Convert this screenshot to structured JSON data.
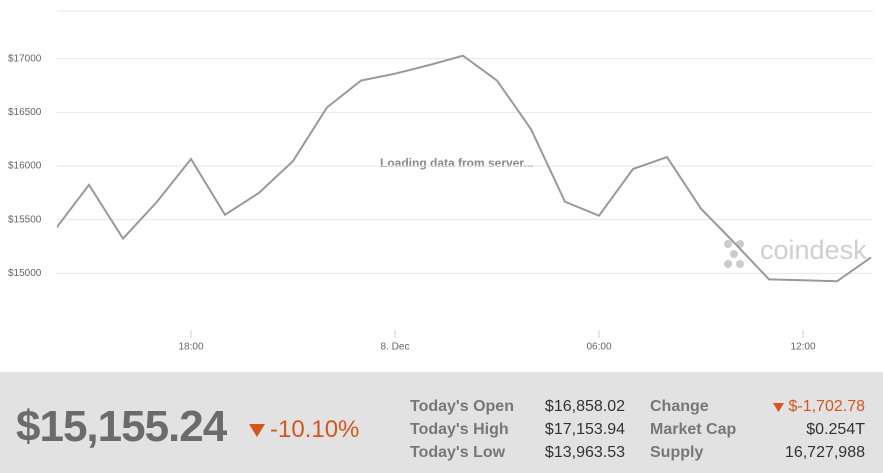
{
  "chart_data": {
    "type": "line",
    "categories": [
      null,
      null,
      null,
      null,
      "18:00",
      null,
      null,
      null,
      null,
      null,
      "8. Dec",
      null,
      null,
      null,
      null,
      null,
      "06:00",
      null,
      null,
      null,
      null,
      null,
      "12:00",
      null,
      null
    ],
    "series": [
      {
        "color": "#999999",
        "values": [
          15407,
          15824,
          15324,
          15667,
          16065,
          15546,
          15750,
          16046,
          16546,
          16796,
          16860,
          16940,
          17028,
          16796,
          16343,
          15667,
          15537,
          15972,
          16083,
          15602,
          15278,
          14944,
          14935,
          14926,
          15148
        ]
      }
    ],
    "ylim": [
      14500,
      17500
    ],
    "yticks": [
      {
        "value": 15000,
        "label": "$15000"
      },
      {
        "value": 15500,
        "label": "$15500"
      },
      {
        "value": 16000,
        "label": "$16000"
      },
      {
        "value": 16500,
        "label": "$16500"
      },
      {
        "value": 17000,
        "label": "$17000"
      }
    ],
    "grid": true
  },
  "overlay_text": "Loading data from server...",
  "watermark": "coindesk",
  "summary": {
    "price": "$15,155.24",
    "change_pct": "-10.10%",
    "stats": [
      [
        "Today's Open",
        "$16,858.02",
        "Change",
        "$-1,702.78"
      ],
      [
        "Today's High",
        "$17,153.94",
        "Market Cap",
        "$0.254T"
      ],
      [
        "Today's Low",
        "$13,963.53",
        "Supply",
        "16,727,988"
      ]
    ]
  }
}
